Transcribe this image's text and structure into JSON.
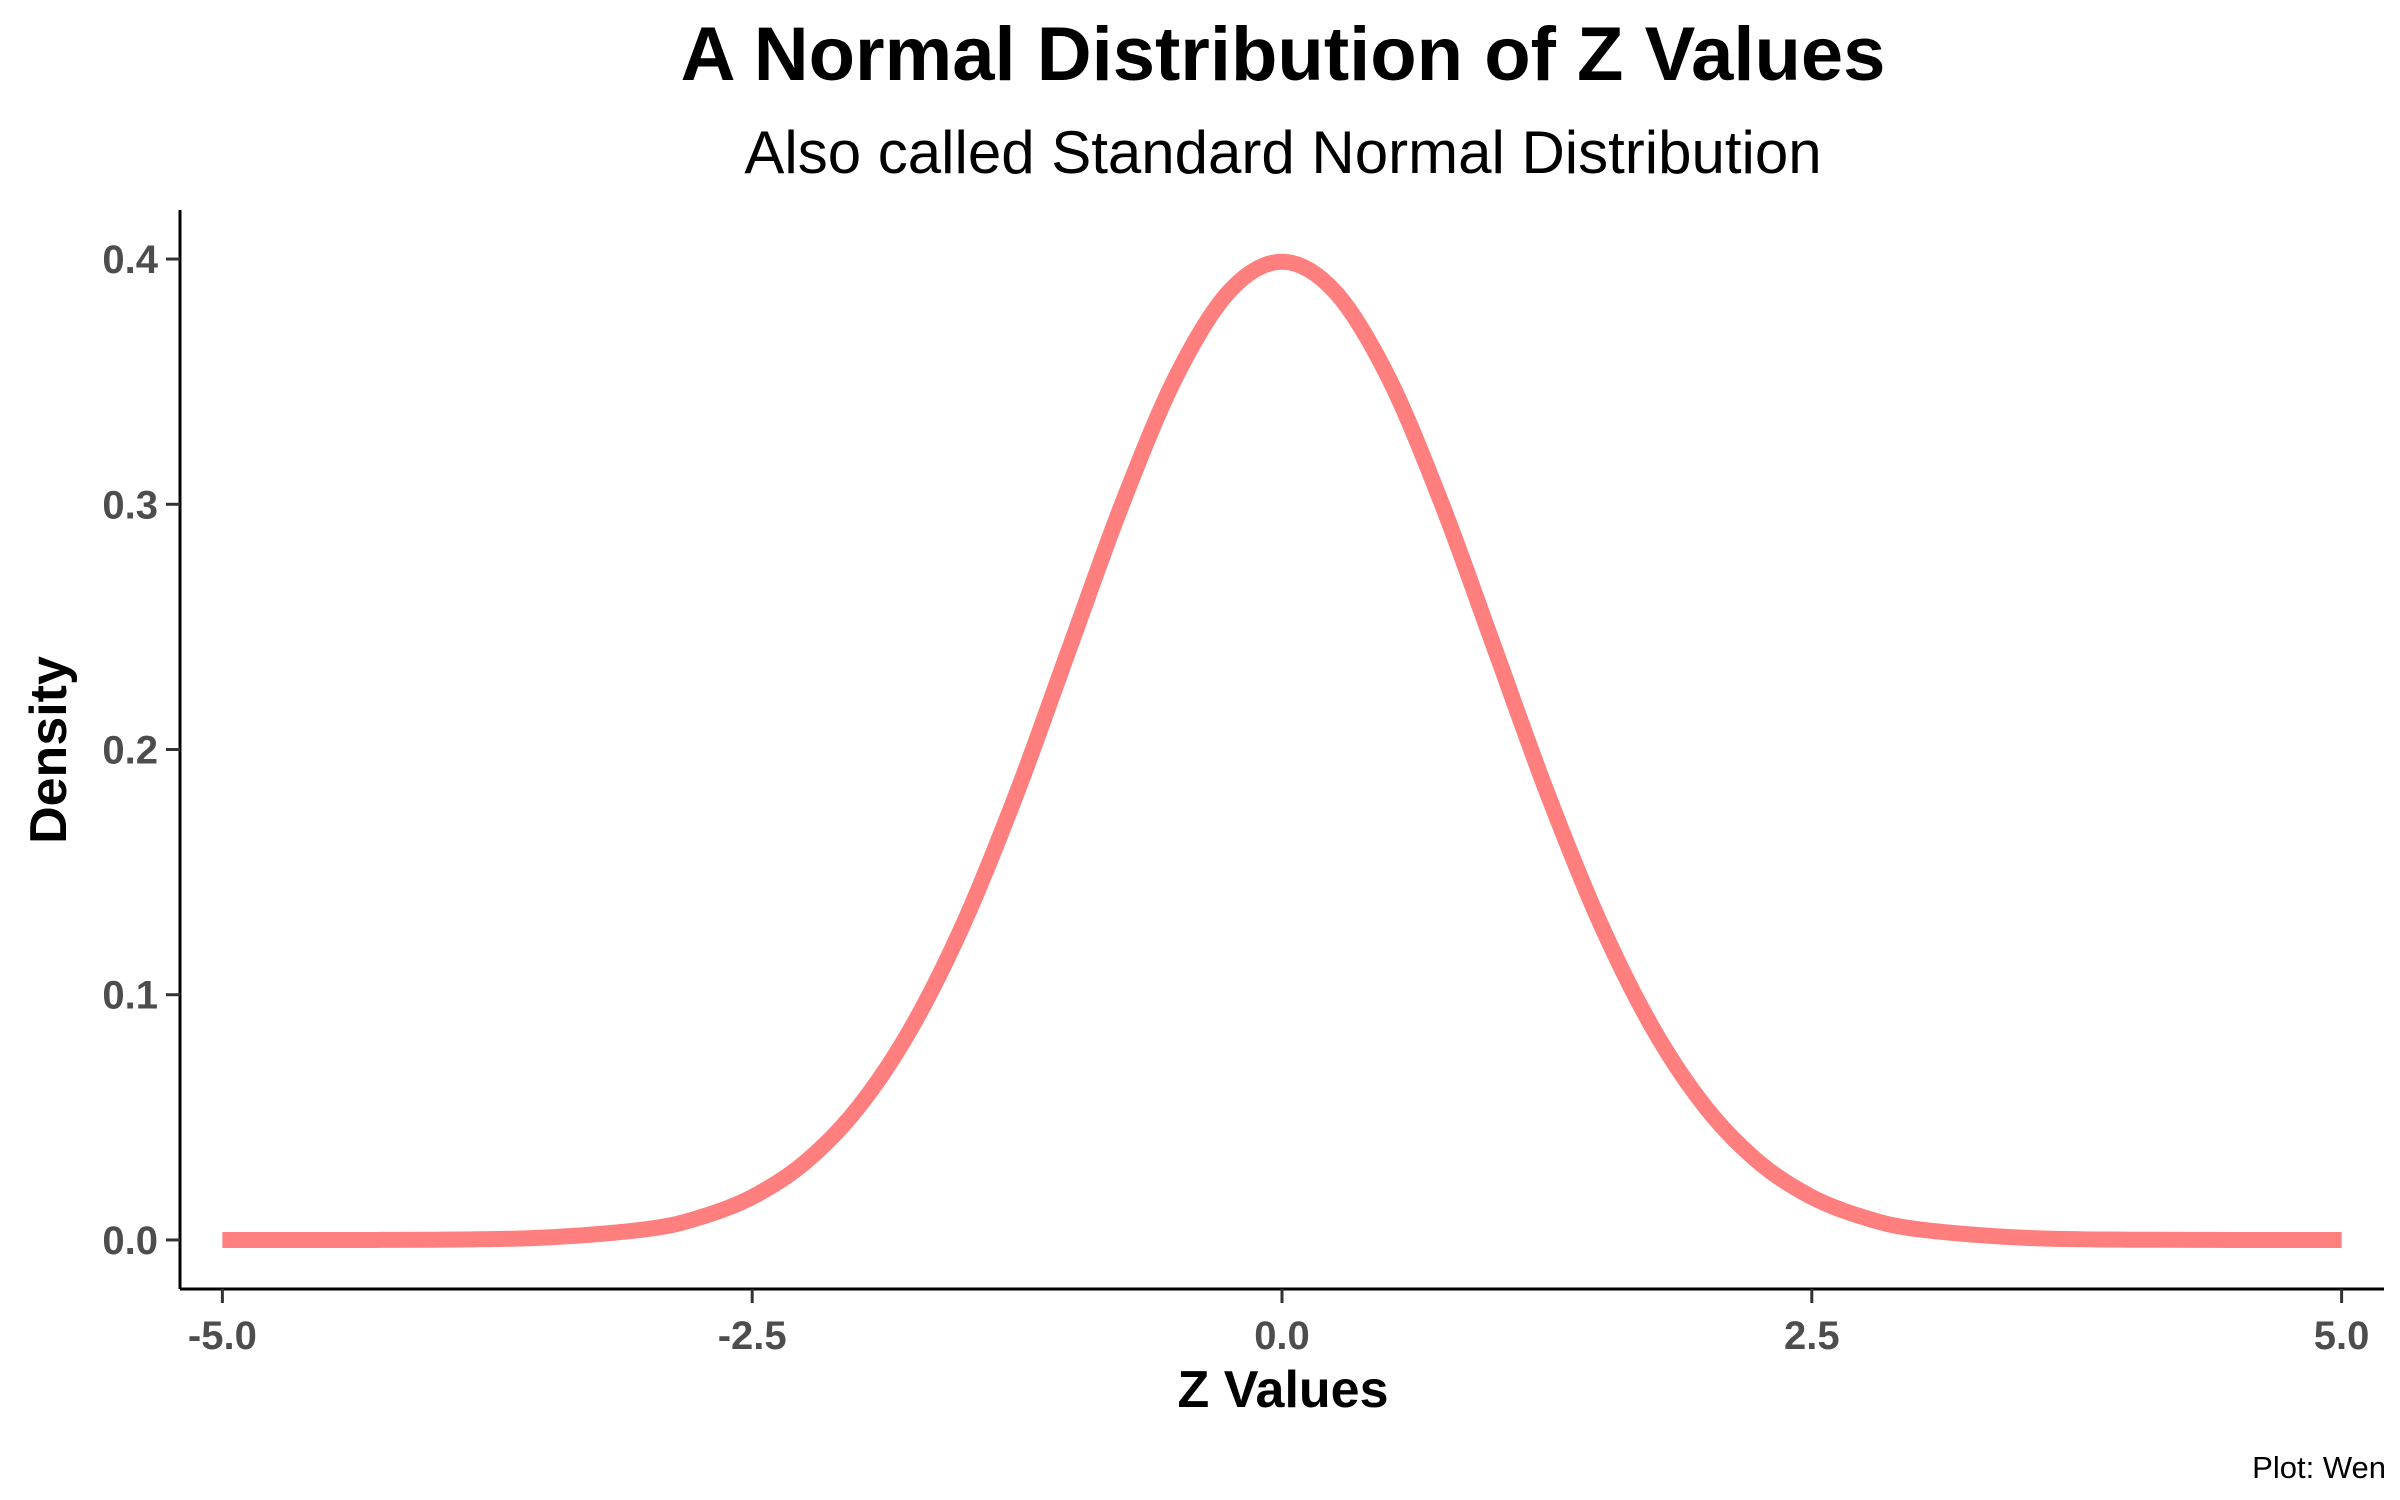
{
  "chart_data": {
    "type": "line",
    "title": "A Normal Distribution of Z Values",
    "subtitle": "Also called Standard Normal Distribution",
    "xlabel": "Z Values",
    "ylabel": "Density",
    "caption": "Plot: Wen",
    "xlim": [
      -5.2,
      5.2
    ],
    "ylim": [
      -0.02,
      0.42
    ],
    "x_ticks": [
      -5.0,
      -2.5,
      0.0,
      2.5,
      5.0
    ],
    "x_tick_labels": [
      "-5.0",
      "-2.5",
      "0.0",
      "2.5",
      "5.0"
    ],
    "y_ticks": [
      0.0,
      0.1,
      0.2,
      0.3,
      0.4
    ],
    "y_tick_labels": [
      "0.0",
      "0.1",
      "0.2",
      "0.3",
      "0.4"
    ],
    "grid": false,
    "legend": "none",
    "line_color": "#ff7f7f",
    "series": [
      {
        "x": [
          -5.0,
          -4.5,
          -4.0,
          -3.5,
          -3.0,
          -2.75,
          -2.5,
          -2.25,
          -2.0,
          -1.75,
          -1.5,
          -1.25,
          -1.0,
          -0.75,
          -0.5,
          -0.25,
          0.0,
          0.25,
          0.5,
          0.75,
          1.0,
          1.25,
          1.5,
          1.75,
          2.0,
          2.25,
          2.5,
          2.75,
          3.0,
          3.5,
          4.0,
          4.5,
          5.0
        ],
        "values": [
          0.0,
          0.0,
          0.0001,
          0.0009,
          0.0044,
          0.0091,
          0.0175,
          0.0317,
          0.054,
          0.0863,
          0.1295,
          0.1826,
          0.242,
          0.3011,
          0.3521,
          0.3867,
          0.3989,
          0.3867,
          0.3521,
          0.3011,
          0.242,
          0.1826,
          0.1295,
          0.0863,
          0.054,
          0.0317,
          0.0175,
          0.0091,
          0.0044,
          0.0009,
          0.0001,
          0.0,
          0.0
        ]
      }
    ]
  }
}
